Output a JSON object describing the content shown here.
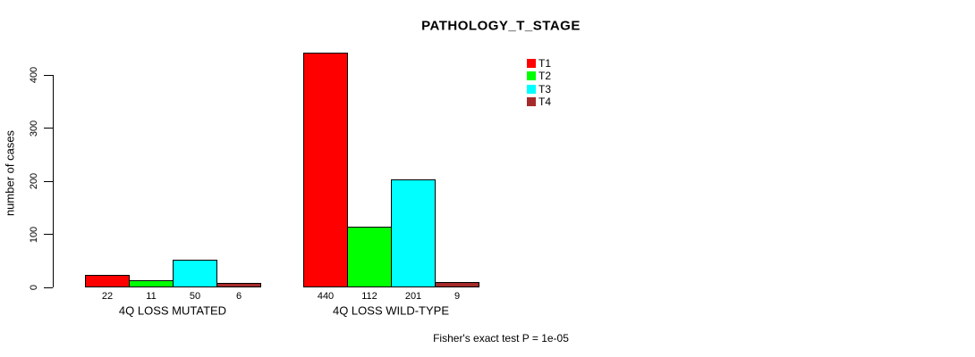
{
  "chart_data": {
    "type": "bar",
    "title": "PATHOLOGY_T_STAGE",
    "ylabel": "number of cases",
    "xlabel": "",
    "ylim": [
      0,
      447
    ],
    "yticks": [
      0,
      100,
      200,
      300,
      400
    ],
    "grid": false,
    "legend_position": "top-right",
    "series": [
      "T1",
      "T2",
      "T3",
      "T4"
    ],
    "series_colors": [
      "#FF0000",
      "#00FF00",
      "#00FFFF",
      "#A52A2A"
    ],
    "categories": [
      "4Q LOSS MUTATED",
      "4Q LOSS WILD-TYPE"
    ],
    "groups": [
      {
        "label": "4Q LOSS MUTATED",
        "values": [
          22,
          11,
          50,
          6
        ]
      },
      {
        "label": "4Q LOSS WILD-TYPE",
        "values": [
          440,
          112,
          201,
          9
        ]
      }
    ],
    "bar_value_labels": [
      [
        22,
        11,
        50,
        6
      ],
      [
        440,
        112,
        201,
        9
      ]
    ],
    "annotation": "Fisher's exact test P = 1e-05",
    "axis_color": "#000000",
    "background_color": "#FFFFFF"
  }
}
